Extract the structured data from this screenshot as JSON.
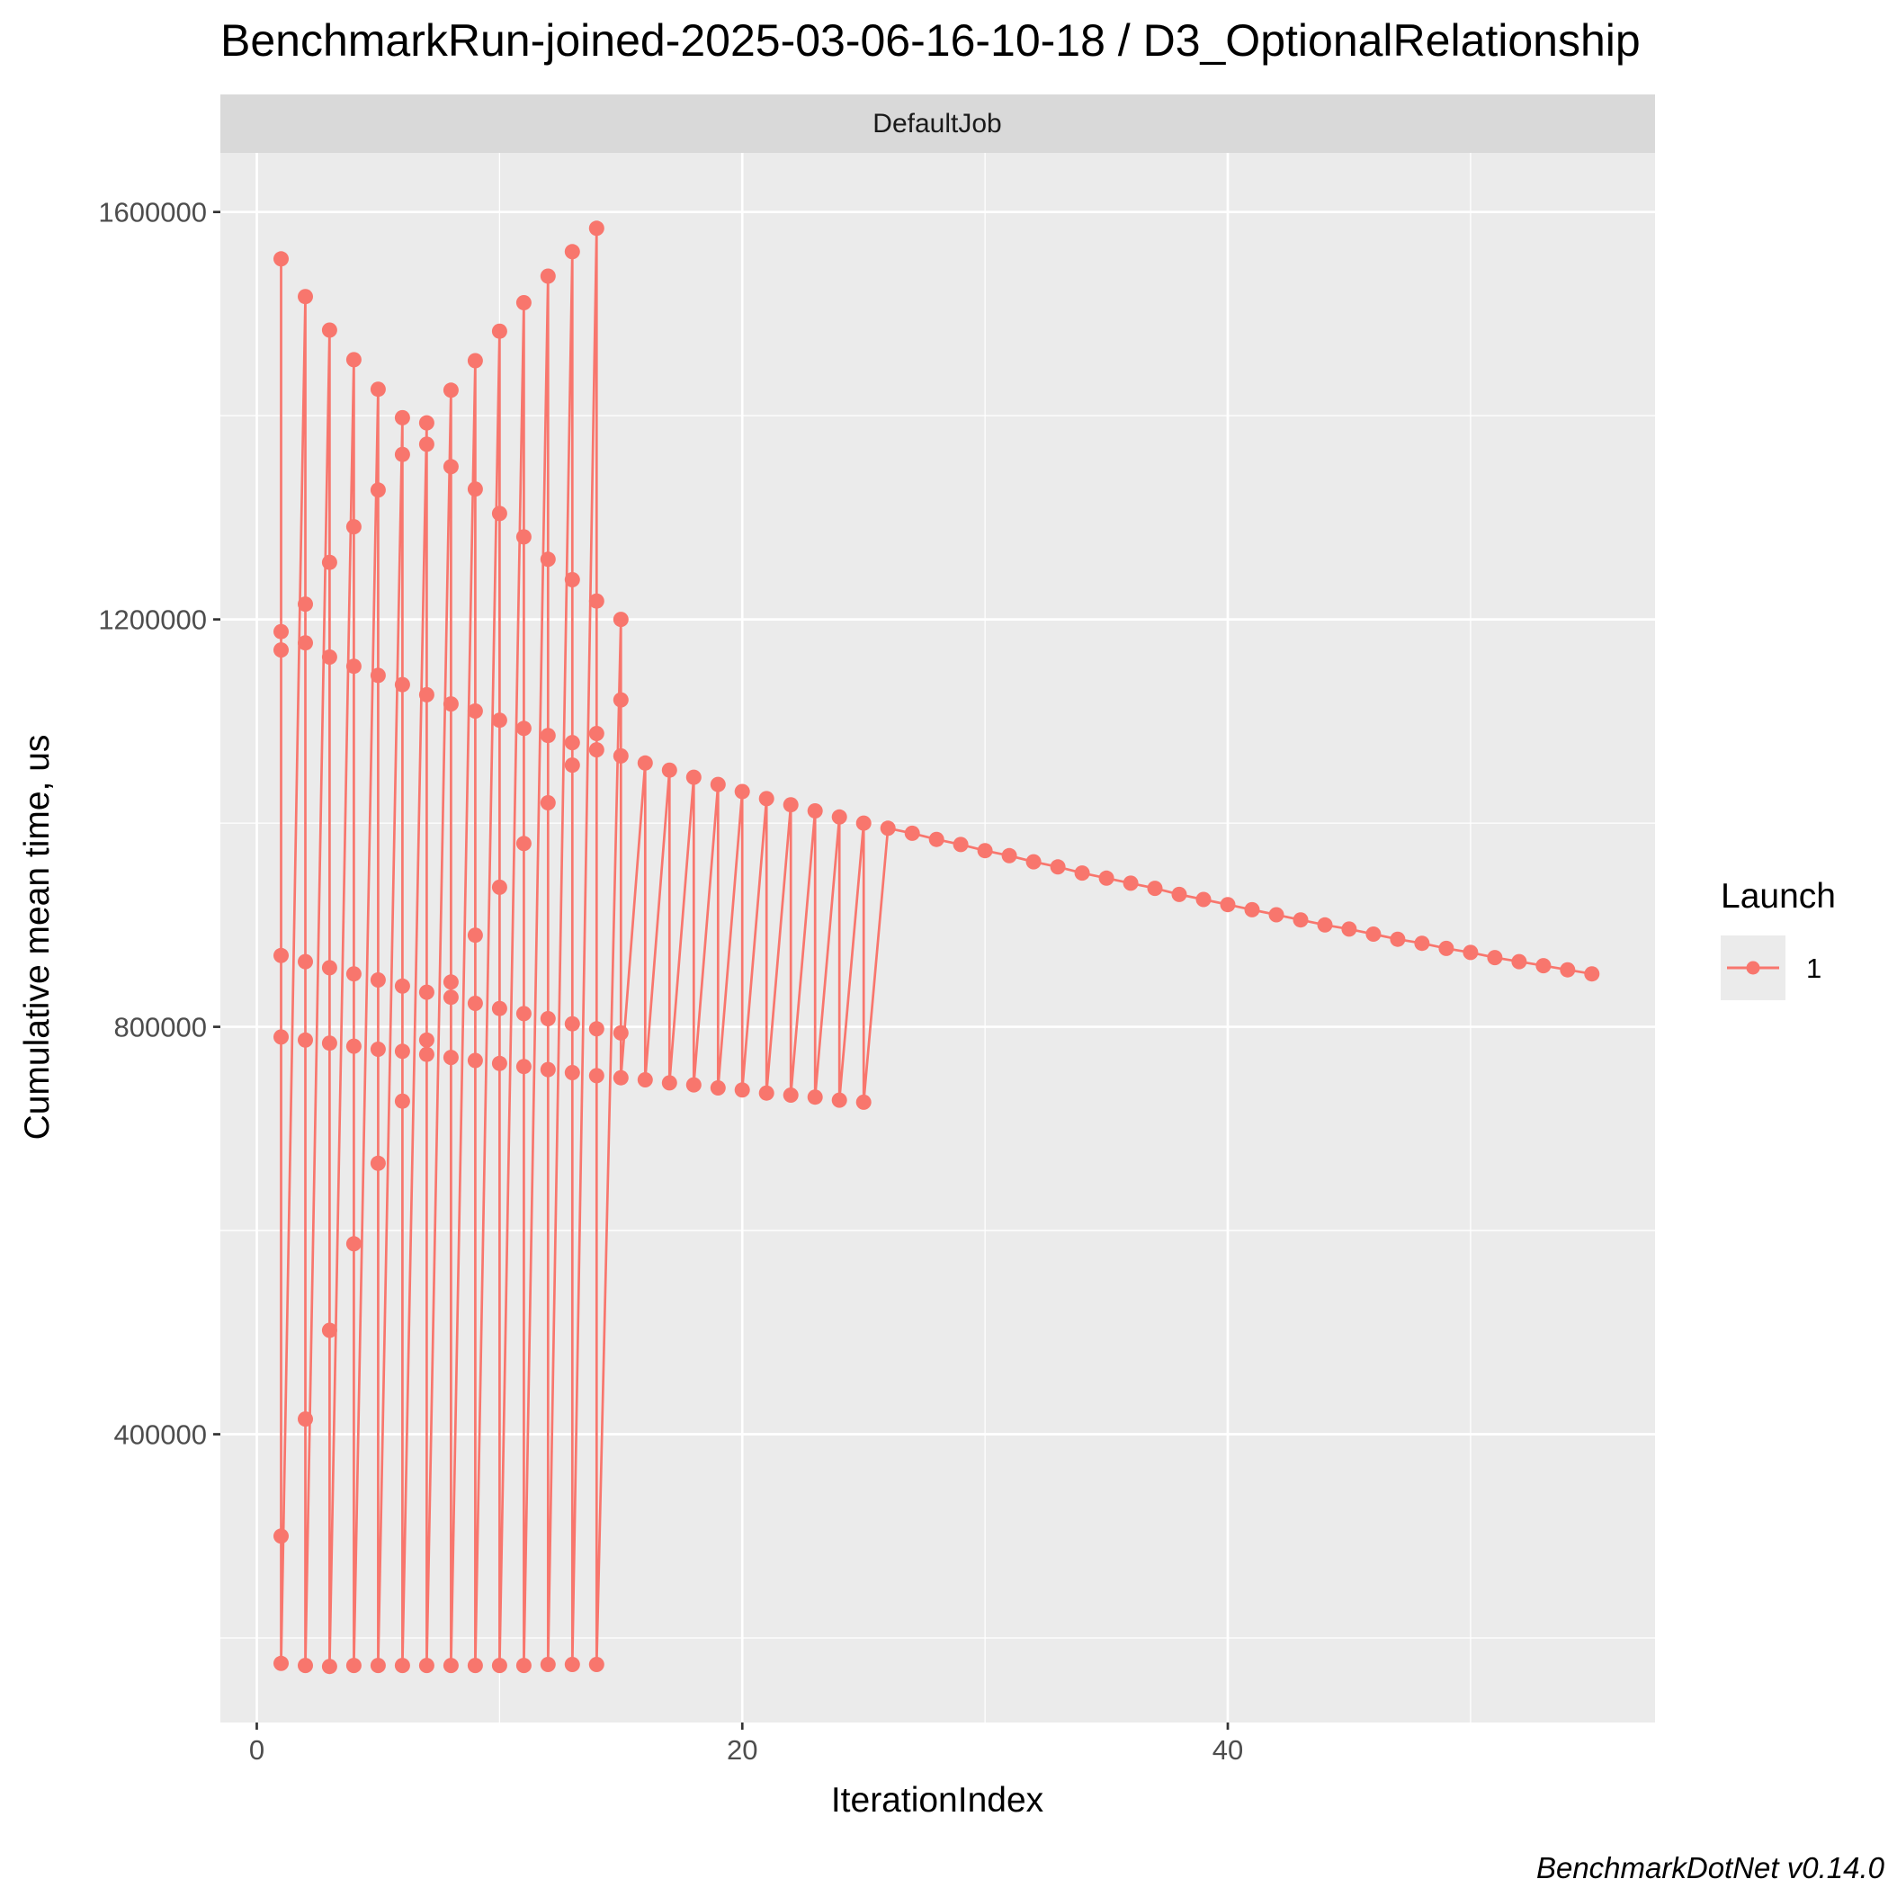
{
  "chart_data": {
    "type": "line",
    "title": "BenchmarkRun-joined-2025-03-06-16-10-18 / D3_OptionalRelationship",
    "facet": "DefaultJob",
    "xlabel": "IterationIndex",
    "ylabel": "Cumulative mean time, us",
    "caption": "BenchmarkDotNet v0.14.0",
    "xlim": [
      -1.5,
      57.6
    ],
    "ylim": [
      117000,
      1658000
    ],
    "x_ticks": [
      0,
      20,
      40
    ],
    "x_tick_labels": [
      "0",
      "20",
      "40"
    ],
    "y_ticks": [
      400000,
      800000,
      1200000,
      1600000
    ],
    "y_tick_labels": [
      "400000",
      "800000",
      "1200000",
      "1600000"
    ],
    "grid": true,
    "legend": {
      "title": "Launch",
      "position": "right",
      "entries": [
        "1"
      ]
    },
    "color": "#F8766D",
    "series": [
      {
        "name": "1",
        "points": [
          [
            1,
            1554000
          ],
          [
            1,
            1188000
          ],
          [
            1,
            1170000
          ],
          [
            1,
            870000
          ],
          [
            1,
            790000
          ],
          [
            1,
            300000
          ],
          [
            1,
            175000
          ],
          [
            2,
            1517000
          ],
          [
            2,
            1215000
          ],
          [
            2,
            1177000
          ],
          [
            2,
            864000
          ],
          [
            2,
            787000
          ],
          [
            2,
            415000
          ],
          [
            2,
            173000
          ],
          [
            3,
            1484000
          ],
          [
            3,
            1256000
          ],
          [
            3,
            1163000
          ],
          [
            3,
            858000
          ],
          [
            3,
            784000
          ],
          [
            3,
            502000
          ],
          [
            3,
            172000
          ],
          [
            4,
            1455000
          ],
          [
            4,
            1291000
          ],
          [
            4,
            1154000
          ],
          [
            4,
            852000
          ],
          [
            4,
            781000
          ],
          [
            4,
            587000
          ],
          [
            4,
            173000
          ],
          [
            5,
            1426000
          ],
          [
            5,
            1327000
          ],
          [
            5,
            1145000
          ],
          [
            5,
            846000
          ],
          [
            5,
            778000
          ],
          [
            5,
            666000
          ],
          [
            5,
            173000
          ],
          [
            6,
            1398000
          ],
          [
            6,
            1362000
          ],
          [
            6,
            1136000
          ],
          [
            6,
            840000
          ],
          [
            6,
            776000
          ],
          [
            6,
            727000
          ],
          [
            6,
            173000
          ],
          [
            7,
            1393000
          ],
          [
            7,
            1372000
          ],
          [
            7,
            1126000
          ],
          [
            7,
            834000
          ],
          [
            7,
            787000
          ],
          [
            7,
            773000
          ],
          [
            7,
            173000
          ],
          [
            8,
            1425000
          ],
          [
            8,
            1350000
          ],
          [
            8,
            1117000
          ],
          [
            8,
            844000
          ],
          [
            8,
            829000
          ],
          [
            8,
            770000
          ],
          [
            8,
            173000
          ],
          [
            9,
            1454000
          ],
          [
            9,
            1328000
          ],
          [
            9,
            1110000
          ],
          [
            9,
            890000
          ],
          [
            9,
            823000
          ],
          [
            9,
            767000
          ],
          [
            9,
            173000
          ],
          [
            10,
            1483000
          ],
          [
            10,
            1304000
          ],
          [
            10,
            1101000
          ],
          [
            10,
            937000
          ],
          [
            10,
            818000
          ],
          [
            10,
            764000
          ],
          [
            10,
            173000
          ],
          [
            11,
            1511000
          ],
          [
            11,
            1281000
          ],
          [
            11,
            1093000
          ],
          [
            11,
            980000
          ],
          [
            11,
            813000
          ],
          [
            11,
            761000
          ],
          [
            11,
            173000
          ],
          [
            12,
            1537000
          ],
          [
            12,
            1259000
          ],
          [
            12,
            1086000
          ],
          [
            12,
            1020000
          ],
          [
            12,
            808000
          ],
          [
            12,
            758000
          ],
          [
            12,
            174000
          ],
          [
            13,
            1561000
          ],
          [
            13,
            1239000
          ],
          [
            13,
            1079000
          ],
          [
            13,
            1057000
          ],
          [
            13,
            803000
          ],
          [
            13,
            755000
          ],
          [
            13,
            174000
          ],
          [
            14,
            1584000
          ],
          [
            14,
            1218000
          ],
          [
            14,
            1088000
          ],
          [
            14,
            1072000
          ],
          [
            14,
            798000
          ],
          [
            14,
            752000
          ],
          [
            14,
            174000
          ],
          [
            15,
            1200000
          ],
          [
            15,
            1121000
          ],
          [
            15,
            1066000
          ],
          [
            15,
            794000
          ],
          [
            15,
            750000
          ],
          [
            16,
            1059000
          ],
          [
            16,
            748000
          ],
          [
            17,
            1052000
          ],
          [
            17,
            745000
          ],
          [
            18,
            1045000
          ],
          [
            18,
            743000
          ],
          [
            19,
            1038000
          ],
          [
            19,
            740000
          ],
          [
            20,
            1031000
          ],
          [
            20,
            738000
          ],
          [
            21,
            1024000
          ],
          [
            21,
            735000
          ],
          [
            22,
            1018000
          ],
          [
            22,
            733000
          ],
          [
            23,
            1012000
          ],
          [
            23,
            731000
          ],
          [
            24,
            1006000
          ],
          [
            24,
            728000
          ],
          [
            25,
            1000000
          ],
          [
            25,
            726000
          ],
          [
            26,
            995000
          ],
          [
            27,
            990000
          ],
          [
            28,
            984000
          ],
          [
            29,
            979000
          ],
          [
            30,
            973000
          ],
          [
            31,
            968000
          ],
          [
            32,
            962000
          ],
          [
            33,
            957000
          ],
          [
            34,
            951000
          ],
          [
            35,
            946000
          ],
          [
            36,
            941000
          ],
          [
            37,
            936000
          ],
          [
            38,
            930000
          ],
          [
            39,
            925000
          ],
          [
            40,
            920000
          ],
          [
            41,
            915000
          ],
          [
            42,
            910000
          ],
          [
            43,
            905000
          ],
          [
            44,
            900000
          ],
          [
            45,
            896000
          ],
          [
            46,
            891000
          ],
          [
            47,
            886000
          ],
          [
            48,
            882000
          ],
          [
            49,
            877000
          ],
          [
            50,
            873000
          ],
          [
            51,
            868000
          ],
          [
            52,
            864000
          ],
          [
            53,
            860000
          ],
          [
            54,
            856000
          ],
          [
            55,
            852000
          ]
        ]
      }
    ]
  }
}
